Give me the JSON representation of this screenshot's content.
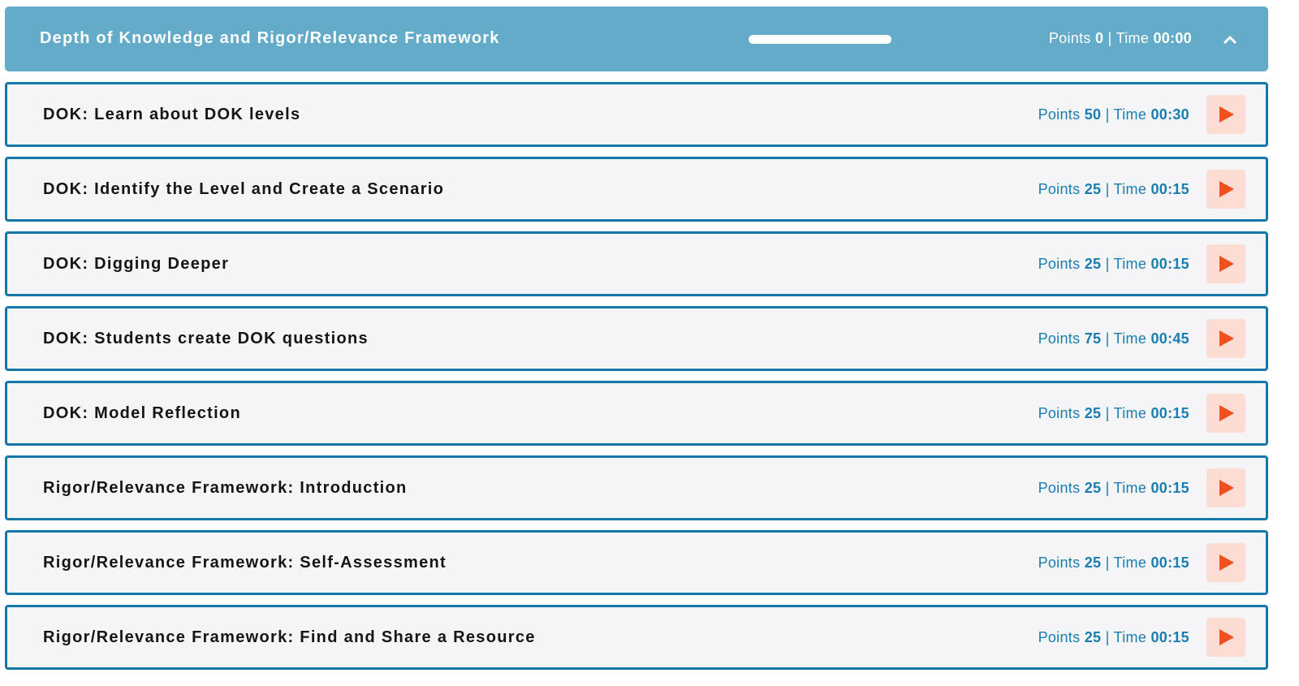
{
  "header": {
    "title": "Depth of Knowledge and Rigor/Relevance Framework",
    "points_label": "Points",
    "points": "0",
    "sep": "|",
    "time_label": "Time",
    "time": "00:00",
    "collapse_icon": "chevron-up-icon"
  },
  "colors": {
    "header_bg": "#63abc9",
    "row_border": "#1378a8",
    "meta_text": "#1a7db0",
    "play_bg": "#fcdcd3",
    "play_icon": "#f0501e"
  },
  "items": [
    {
      "title": "DOK: Learn about DOK levels",
      "points": "50",
      "time": "00:30"
    },
    {
      "title": "DOK: Identify the Level and Create a Scenario",
      "points": "25",
      "time": "00:15"
    },
    {
      "title": "DOK: Digging Deeper",
      "points": "25",
      "time": "00:15"
    },
    {
      "title": "DOK: Students create DOK questions",
      "points": "75",
      "time": "00:45"
    },
    {
      "title": "DOK: Model Reflection",
      "points": "25",
      "time": "00:15"
    },
    {
      "title": "Rigor/Relevance Framework: Introduction",
      "points": "25",
      "time": "00:15"
    },
    {
      "title": "Rigor/Relevance Framework: Self-Assessment",
      "points": "25",
      "time": "00:15"
    },
    {
      "title": "Rigor/Relevance Framework: Find and Share a Resource",
      "points": "25",
      "time": "00:15"
    }
  ]
}
